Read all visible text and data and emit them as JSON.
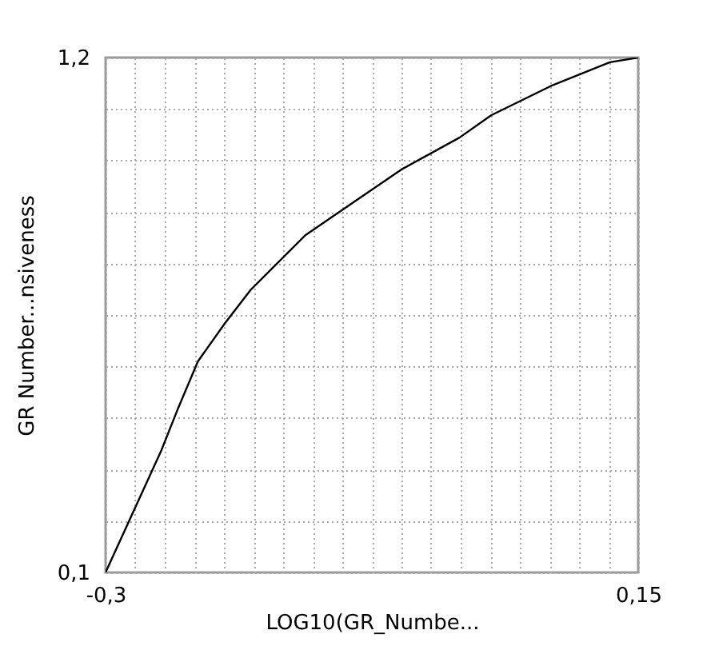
{
  "chart_data": {
    "type": "line",
    "xlabel": "LOG10(GR_Numbe...",
    "ylabel": "GR Number...nsiveness",
    "x": [
      -0.3,
      -0.253,
      -0.239,
      -0.222,
      -0.199,
      -0.177,
      -0.131,
      -0.05,
      -0.001,
      0.026,
      0.076,
      0.126,
      0.15
    ],
    "series": [
      {
        "color": "#000000",
        "values": [
          0.1,
          0.36,
          0.449,
          0.551,
          0.633,
          0.705,
          0.821,
          0.961,
          1.029,
          1.077,
          1.139,
          1.19,
          1.2
        ]
      }
    ],
    "xlim": [
      -0.3,
      0.15
    ],
    "ylim": [
      0.1,
      1.2
    ],
    "xticks": [
      {
        "value": -0.3,
        "label": "-0,3"
      },
      {
        "value": -0.275,
        "label": null
      },
      {
        "value": -0.25,
        "label": null
      },
      {
        "value": -0.225,
        "label": null
      },
      {
        "value": -0.2,
        "label": null
      },
      {
        "value": -0.175,
        "label": null
      },
      {
        "value": -0.15,
        "label": null
      },
      {
        "value": -0.125,
        "label": null
      },
      {
        "value": -0.1,
        "label": null
      },
      {
        "value": -0.075,
        "label": null
      },
      {
        "value": -0.05,
        "label": null
      },
      {
        "value": -0.025,
        "label": null
      },
      {
        "value": 0,
        "label": null
      },
      {
        "value": 0.025,
        "label": null
      },
      {
        "value": 0.05,
        "label": null
      },
      {
        "value": 0.075,
        "label": null
      },
      {
        "value": 0.1,
        "label": null
      },
      {
        "value": 0.125,
        "label": null
      },
      {
        "value": 0.15,
        "label": "0,15"
      }
    ],
    "yticks": [
      {
        "value": 0.1,
        "label": "0,1"
      },
      {
        "value": 0.21,
        "label": null
      },
      {
        "value": 0.32,
        "label": null
      },
      {
        "value": 0.43,
        "label": null
      },
      {
        "value": 0.54,
        "label": null
      },
      {
        "value": 0.65,
        "label": null
      },
      {
        "value": 0.76,
        "label": null
      },
      {
        "value": 0.87,
        "label": null
      },
      {
        "value": 0.98,
        "label": null
      },
      {
        "value": 1.09,
        "label": null
      },
      {
        "value": 1.2,
        "label": "1,2"
      }
    ],
    "grid": true,
    "marker": "none",
    "line_style": "solid"
  }
}
